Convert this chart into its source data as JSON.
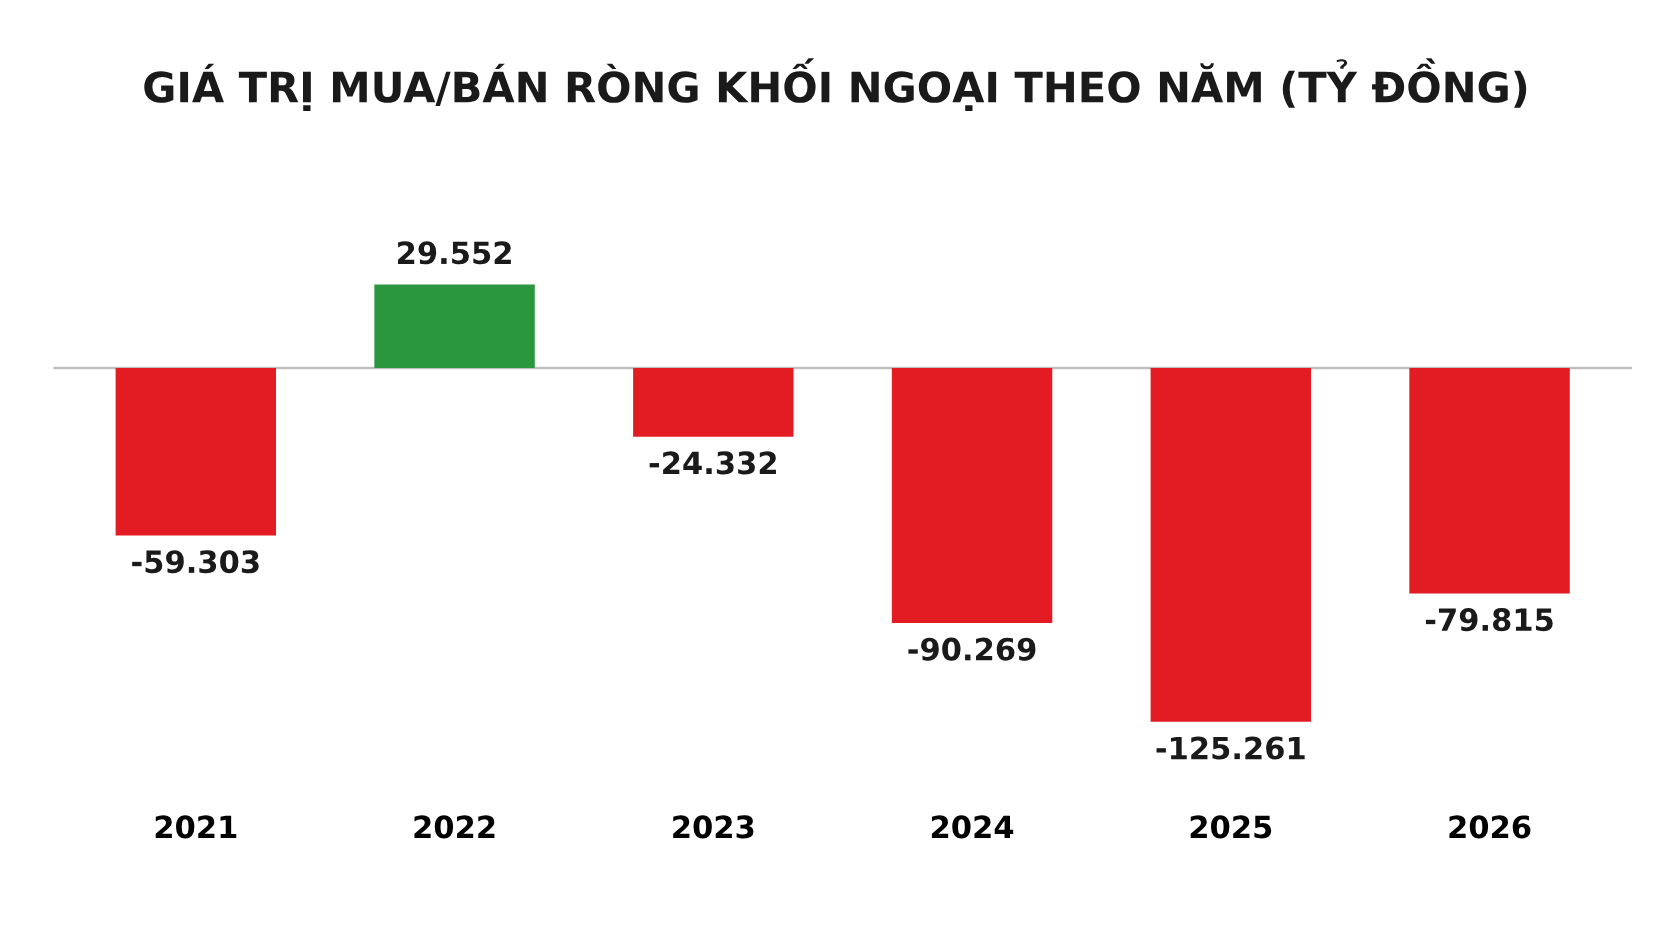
{
  "chart_data": {
    "type": "bar",
    "title": "GIÁ TRỊ MUA/BÁN RÒNG KHỐI NGOẠI THEO NĂM (TỶ ĐỒNG)",
    "categories": [
      "2021",
      "2022",
      "2023",
      "2024",
      "2025",
      "2026"
    ],
    "values": [
      -59303,
      29552,
      -24332,
      -90269,
      -125261,
      -79815
    ],
    "value_labels": [
      "-59.303",
      "29.552",
      "-24.332",
      "-90.269",
      "-125.261",
      "-79.815"
    ],
    "colors": [
      "#e31b23",
      "#2a963e",
      "#e31b23",
      "#e31b23",
      "#e31b23",
      "#e31b23"
    ],
    "grid": false,
    "legend": false
  }
}
